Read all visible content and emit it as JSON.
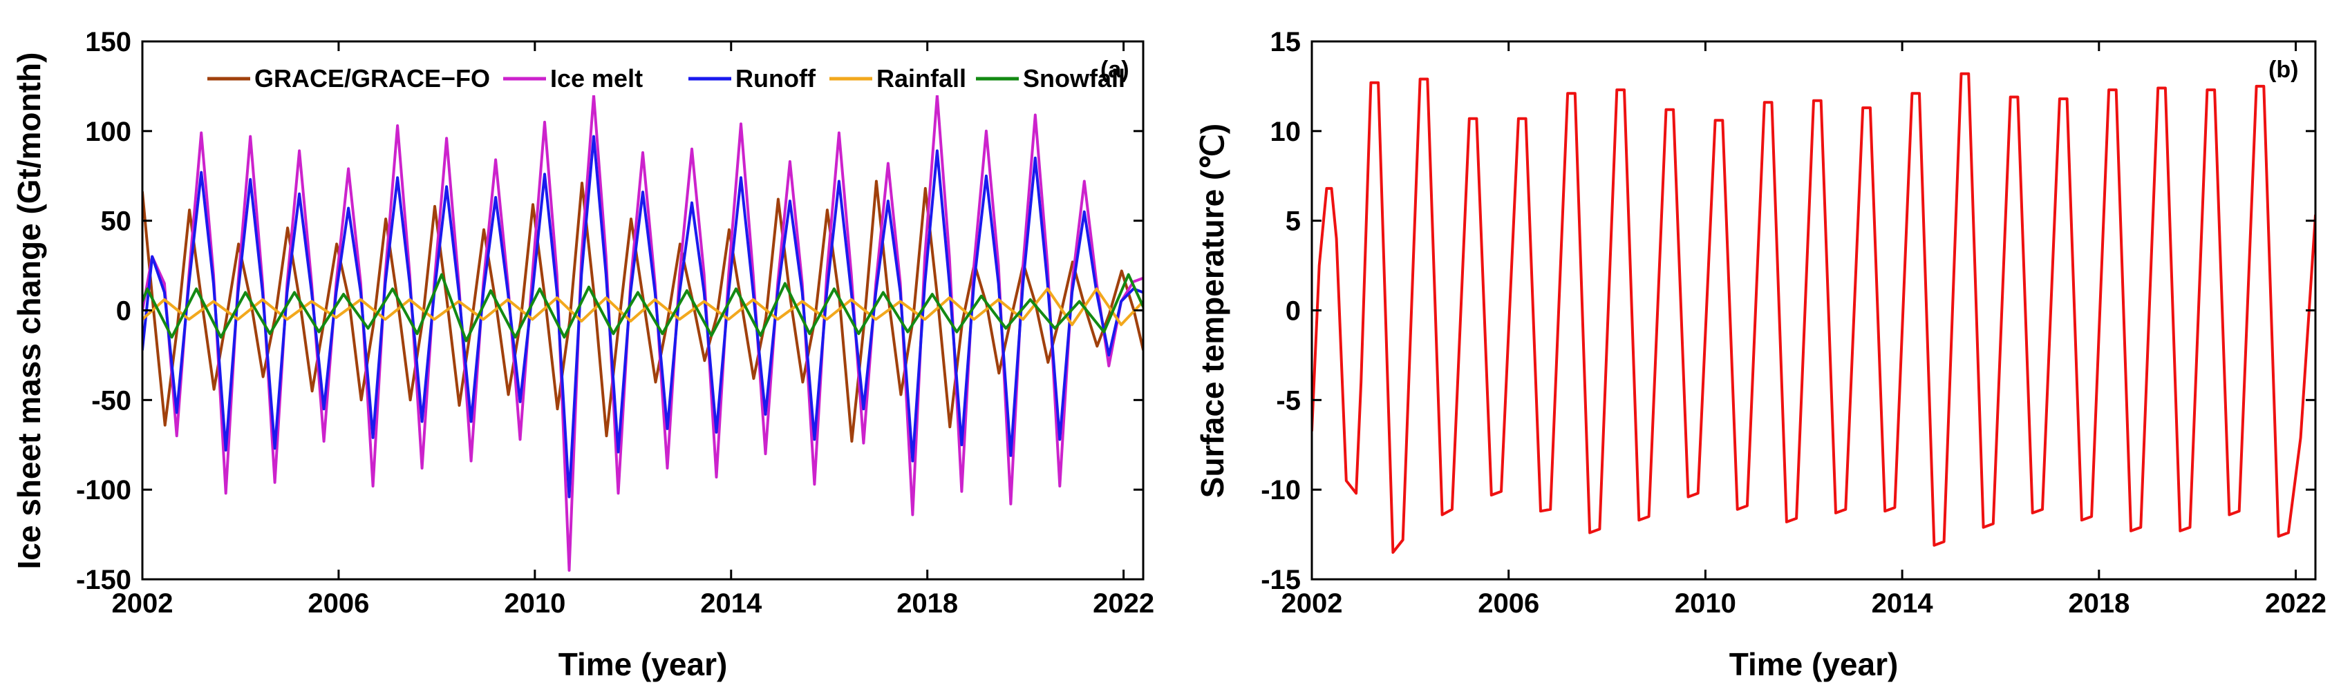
{
  "chart_data": [
    {
      "type": "line",
      "panel_label": "(a)",
      "xlabel": "Time (year)",
      "ylabel": "Ice sheet mass change (Gt/month)",
      "xlim": [
        2002,
        2022.4
      ],
      "ylim": [
        -150,
        150
      ],
      "xticks": [
        2002,
        2006,
        2010,
        2014,
        2018,
        2022
      ],
      "yticks": [
        -150,
        -100,
        -50,
        0,
        50,
        100,
        150
      ],
      "legend_position": "top",
      "series": [
        {
          "name": "GRACE/GRACE−FO",
          "color": "#a0400c",
          "x": [
            2002.0,
            2002.21,
            2002.46,
            2002.71,
            2002.96,
            2003.21,
            2003.46,
            2003.71,
            2003.96,
            2004.21,
            2004.46,
            2004.71,
            2004.96,
            2005.21,
            2005.46,
            2005.71,
            2005.96,
            2006.21,
            2006.46,
            2006.71,
            2006.96,
            2007.21,
            2007.46,
            2007.71,
            2007.96,
            2008.21,
            2008.46,
            2008.71,
            2008.96,
            2009.21,
            2009.46,
            2009.71,
            2009.96,
            2010.21,
            2010.46,
            2010.71,
            2010.96,
            2011.21,
            2011.46,
            2011.71,
            2011.96,
            2012.21,
            2012.46,
            2012.71,
            2012.96,
            2013.21,
            2013.46,
            2013.71,
            2013.96,
            2014.21,
            2014.46,
            2014.71,
            2014.96,
            2015.21,
            2015.46,
            2015.71,
            2015.96,
            2016.21,
            2016.46,
            2016.71,
            2016.96,
            2017.21,
            2017.46,
            2017.71,
            2017.96,
            2018.21,
            2018.46,
            2018.71,
            2018.96,
            2019.21,
            2019.46,
            2019.71,
            2019.96,
            2020.21,
            2020.46,
            2020.71,
            2020.96,
            2021.21,
            2021.46,
            2021.71,
            2021.96,
            2022.21,
            2022.4
          ],
          "values": [
            66,
            5,
            -64,
            -10,
            56,
            5,
            -44,
            -5,
            37,
            5,
            -37,
            -3,
            46,
            5,
            -45,
            -5,
            37,
            6,
            -50,
            -8,
            51,
            4,
            -50,
            -6,
            58,
            5,
            -53,
            -7,
            45,
            3,
            -47,
            -6,
            59,
            6,
            -55,
            -6,
            71,
            8,
            -70,
            -8,
            51,
            6,
            -40,
            -5,
            37,
            6,
            -28,
            -3,
            45,
            4,
            -38,
            -4,
            62,
            6,
            -40,
            -5,
            56,
            6,
            -73,
            -8,
            72,
            6,
            -47,
            -5,
            68,
            6,
            -65,
            -7,
            26,
            3,
            -35,
            -4,
            26,
            3,
            -29,
            -3,
            27,
            2,
            -20,
            -2,
            22,
            0,
            -22
          ]
        },
        {
          "name": "Ice melt",
          "color": "#cc22cc",
          "x": [
            2002.0,
            2002.2,
            2002.45,
            2002.7,
            2002.95,
            2003.2,
            2003.45,
            2003.7,
            2003.95,
            2004.2,
            2004.45,
            2004.7,
            2004.95,
            2005.2,
            2005.45,
            2005.7,
            2005.95,
            2006.2,
            2006.45,
            2006.7,
            2006.95,
            2007.2,
            2007.45,
            2007.7,
            2007.95,
            2008.2,
            2008.45,
            2008.7,
            2008.95,
            2009.2,
            2009.45,
            2009.7,
            2009.95,
            2010.2,
            2010.45,
            2010.7,
            2010.95,
            2011.2,
            2011.45,
            2011.7,
            2011.95,
            2012.2,
            2012.45,
            2012.7,
            2012.95,
            2013.2,
            2013.45,
            2013.7,
            2013.95,
            2014.2,
            2014.45,
            2014.7,
            2014.95,
            2015.2,
            2015.45,
            2015.7,
            2015.95,
            2016.2,
            2016.45,
            2016.7,
            2016.95,
            2017.2,
            2017.45,
            2017.7,
            2017.95,
            2018.2,
            2018.45,
            2018.7,
            2018.95,
            2019.2,
            2019.45,
            2019.7,
            2019.95,
            2020.2,
            2020.45,
            2020.7,
            2020.95,
            2021.2,
            2021.45,
            2021.7,
            2021.95,
            2022.2,
            2022.4
          ],
          "values": [
            0,
            30,
            15,
            -70,
            20,
            99,
            20,
            -102,
            15,
            97,
            15,
            -96,
            15,
            89,
            15,
            -73,
            15,
            79,
            15,
            -98,
            20,
            103,
            20,
            -88,
            15,
            96,
            15,
            -84,
            15,
            84,
            15,
            -72,
            20,
            105,
            20,
            -145,
            30,
            120,
            30,
            -102,
            15,
            88,
            15,
            -88,
            20,
            90,
            20,
            -93,
            20,
            104,
            20,
            -80,
            15,
            83,
            15,
            -97,
            20,
            99,
            20,
            -74,
            15,
            82,
            15,
            -114,
            30,
            120,
            30,
            -101,
            25,
            100,
            25,
            -108,
            25,
            109,
            25,
            -98,
            15,
            72,
            15,
            -31,
            5,
            16,
            18
          ]
        },
        {
          "name": "Runoff",
          "color": "#1a1aee",
          "x": [
            2002.0,
            2002.2,
            2002.45,
            2002.7,
            2002.95,
            2003.2,
            2003.45,
            2003.7,
            2003.95,
            2004.2,
            2004.45,
            2004.7,
            2004.95,
            2005.2,
            2005.45,
            2005.7,
            2005.95,
            2006.2,
            2006.45,
            2006.7,
            2006.95,
            2007.2,
            2007.45,
            2007.7,
            2007.95,
            2008.2,
            2008.45,
            2008.7,
            2008.95,
            2009.2,
            2009.45,
            2009.7,
            2009.95,
            2010.2,
            2010.45,
            2010.7,
            2010.95,
            2011.2,
            2011.45,
            2011.7,
            2011.95,
            2012.2,
            2012.45,
            2012.7,
            2012.95,
            2013.2,
            2013.45,
            2013.7,
            2013.95,
            2014.2,
            2014.45,
            2014.7,
            2014.95,
            2015.2,
            2015.45,
            2015.7,
            2015.95,
            2016.2,
            2016.45,
            2016.7,
            2016.95,
            2017.2,
            2017.45,
            2017.7,
            2017.95,
            2018.2,
            2018.45,
            2018.7,
            2018.95,
            2019.2,
            2019.45,
            2019.7,
            2019.95,
            2020.2,
            2020.45,
            2020.7,
            2020.95,
            2021.2,
            2021.45,
            2021.7,
            2021.95,
            2022.2,
            2022.4
          ],
          "values": [
            -22,
            30,
            10,
            -57,
            15,
            77,
            15,
            -78,
            10,
            73,
            10,
            -77,
            10,
            65,
            10,
            -55,
            10,
            57,
            10,
            -71,
            15,
            74,
            15,
            -62,
            10,
            69,
            10,
            -62,
            10,
            63,
            10,
            -51,
            10,
            76,
            10,
            -104,
            20,
            97,
            20,
            -79,
            10,
            66,
            10,
            -66,
            10,
            60,
            10,
            -68,
            10,
            74,
            10,
            -58,
            10,
            61,
            10,
            -72,
            10,
            72,
            10,
            -55,
            10,
            61,
            10,
            -84,
            15,
            89,
            15,
            -75,
            15,
            75,
            15,
            -81,
            15,
            85,
            15,
            -72,
            10,
            55,
            10,
            -25,
            5,
            12,
            10
          ]
        },
        {
          "name": "Rainfall",
          "color": "#f2a81d",
          "x": [
            2002.0,
            2002.45,
            2002.95,
            2003.45,
            2003.95,
            2004.45,
            2004.95,
            2005.45,
            2005.95,
            2006.45,
            2006.95,
            2007.45,
            2007.95,
            2008.45,
            2008.95,
            2009.45,
            2009.95,
            2010.45,
            2010.95,
            2011.45,
            2011.95,
            2012.45,
            2012.95,
            2013.45,
            2013.95,
            2014.45,
            2014.95,
            2015.45,
            2015.95,
            2016.45,
            2016.95,
            2017.45,
            2017.95,
            2018.45,
            2018.95,
            2019.45,
            2019.95,
            2020.45,
            2020.95,
            2021.45,
            2021.95,
            2022.4
          ],
          "values": [
            -5,
            6,
            -5,
            5,
            -5,
            6,
            -5,
            5,
            -4,
            6,
            -5,
            6,
            -5,
            5,
            -5,
            6,
            -5,
            7,
            -6,
            7,
            -6,
            6,
            -5,
            5,
            -5,
            6,
            -5,
            5,
            -5,
            6,
            -5,
            5,
            -5,
            7,
            -5,
            6,
            -5,
            12,
            -8,
            12,
            -8,
            5
          ]
        },
        {
          "name": "Snowfall",
          "color": "#138a13",
          "x": [
            2002.0,
            2002.1,
            2002.6,
            2003.1,
            2003.6,
            2004.1,
            2004.6,
            2005.1,
            2005.6,
            2006.1,
            2006.6,
            2007.1,
            2007.6,
            2008.1,
            2008.6,
            2009.1,
            2009.6,
            2010.1,
            2010.6,
            2011.1,
            2011.6,
            2012.1,
            2012.6,
            2013.1,
            2013.6,
            2014.1,
            2014.6,
            2015.1,
            2015.6,
            2016.1,
            2016.6,
            2017.1,
            2017.6,
            2018.1,
            2018.6,
            2019.1,
            2019.6,
            2020.1,
            2020.6,
            2021.1,
            2021.6,
            2022.1,
            2022.4
          ],
          "values": [
            5,
            12,
            -15,
            12,
            -15,
            10,
            -13,
            10,
            -12,
            9,
            -10,
            12,
            -13,
            20,
            -17,
            11,
            -15,
            12,
            -15,
            13,
            -13,
            10,
            -13,
            11,
            -14,
            12,
            -14,
            15,
            -13,
            12,
            -13,
            10,
            -12,
            9,
            -12,
            8,
            -10,
            6,
            -10,
            5,
            -12,
            20,
            2
          ]
        }
      ]
    },
    {
      "type": "line",
      "panel_label": "(b)",
      "xlabel": "Time (year)",
      "ylabel": "Surface temperature (℃)",
      "xlim": [
        2002,
        2022.4
      ],
      "ylim": [
        -15,
        15
      ],
      "xticks": [
        2002,
        2006,
        2010,
        2014,
        2018,
        2022
      ],
      "yticks": [
        -15,
        -10,
        -5,
        0,
        5,
        10,
        15
      ],
      "series": [
        {
          "name": "Surface temperature",
          "color": "#ee1111",
          "x": [
            2002.0,
            2002.15,
            2002.3,
            2002.4,
            2002.5,
            2002.7,
            2002.9,
            2003.0,
            2003.2,
            2003.35,
            2003.65,
            2003.85,
            2004.2,
            2004.35,
            2004.65,
            2004.85,
            2005.2,
            2005.35,
            2005.65,
            2005.85,
            2006.2,
            2006.35,
            2006.65,
            2006.85,
            2007.2,
            2007.35,
            2007.65,
            2007.85,
            2008.2,
            2008.35,
            2008.65,
            2008.85,
            2009.2,
            2009.35,
            2009.65,
            2009.85,
            2010.2,
            2010.35,
            2010.65,
            2010.85,
            2011.2,
            2011.35,
            2011.65,
            2011.85,
            2012.2,
            2012.35,
            2012.65,
            2012.85,
            2013.2,
            2013.35,
            2013.65,
            2013.85,
            2014.2,
            2014.35,
            2014.65,
            2014.85,
            2015.2,
            2015.35,
            2015.65,
            2015.85,
            2016.2,
            2016.35,
            2016.65,
            2016.85,
            2017.2,
            2017.35,
            2017.65,
            2017.85,
            2018.2,
            2018.35,
            2018.65,
            2018.85,
            2019.2,
            2019.35,
            2019.65,
            2019.85,
            2020.2,
            2020.35,
            2020.65,
            2020.85,
            2021.2,
            2021.35,
            2021.65,
            2021.85,
            2022.1,
            2022.4
          ],
          "values": [
            -6.7,
            2.5,
            6.8,
            6.8,
            4,
            -9.5,
            -10.2,
            -4,
            12.7,
            12.7,
            -13.5,
            -12.8,
            12.9,
            12.9,
            -11.4,
            -11.1,
            10.7,
            10.7,
            -10.3,
            -10.1,
            10.7,
            10.7,
            -11.2,
            -11.1,
            12.1,
            12.1,
            -12.4,
            -12.2,
            12.3,
            12.3,
            -11.7,
            -11.5,
            11.2,
            11.2,
            -10.4,
            -10.2,
            10.6,
            10.6,
            -11.1,
            -10.9,
            11.6,
            11.6,
            -11.8,
            -11.6,
            11.7,
            11.7,
            -11.3,
            -11.1,
            11.3,
            11.3,
            -11.2,
            -11.0,
            12.1,
            12.1,
            -13.1,
            -12.9,
            13.2,
            13.2,
            -12.1,
            -11.9,
            11.9,
            11.9,
            -11.3,
            -11.1,
            11.8,
            11.8,
            -11.7,
            -11.5,
            12.3,
            12.3,
            -12.3,
            -12.1,
            12.4,
            12.4,
            -12.3,
            -12.1,
            12.3,
            12.3,
            -11.4,
            -11.2,
            12.5,
            12.5,
            -12.6,
            -12.4,
            -7.1,
            5.3
          ]
        }
      ]
    }
  ]
}
